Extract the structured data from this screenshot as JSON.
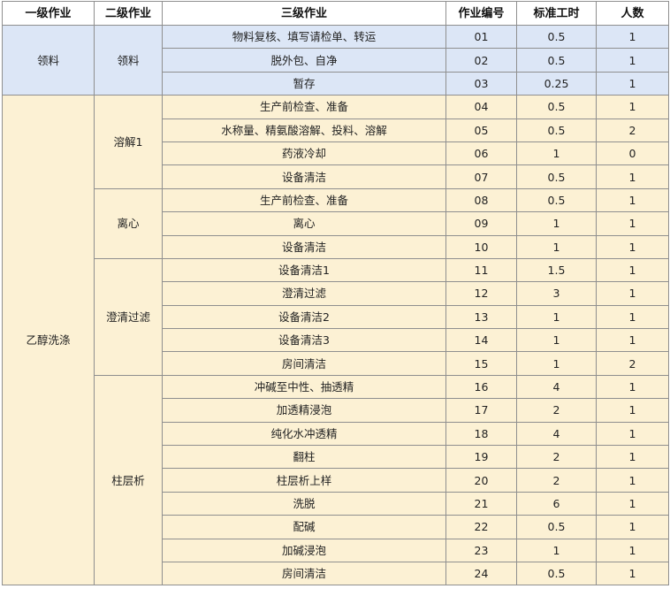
{
  "header": {
    "level1": "一级作业",
    "level2": "二级作业",
    "level3": "三级作业",
    "code": "作业编号",
    "std_hours": "标准工时",
    "people": "人数"
  },
  "groups": [
    {
      "level1": "领料",
      "subgroups": [
        {
          "level2": "领料",
          "rows": [
            {
              "task": "物料复核、填写请检单、转运",
              "code": "01",
              "hours": "0.5",
              "people": "1"
            },
            {
              "task": "脱外包、自净",
              "code": "02",
              "hours": "0.5",
              "people": "1"
            },
            {
              "task": "暂存",
              "code": "03",
              "hours": "0.25",
              "people": "1"
            }
          ]
        }
      ]
    },
    {
      "level1": "乙醇洗涤",
      "subgroups": [
        {
          "level2": "溶解1",
          "rows": [
            {
              "task": "生产前检查、准备",
              "code": "04",
              "hours": "0.5",
              "people": "1"
            },
            {
              "task": "水称量、精氨酸溶解、投料、溶解",
              "code": "05",
              "hours": "0.5",
              "people": "2"
            },
            {
              "task": "药液冷却",
              "code": "06",
              "hours": "1",
              "people": "0"
            },
            {
              "task": "设备清洁",
              "code": "07",
              "hours": "0.5",
              "people": "1"
            }
          ]
        },
        {
          "level2": "离心",
          "rows": [
            {
              "task": "生产前检查、准备",
              "code": "08",
              "hours": "0.5",
              "people": "1"
            },
            {
              "task": "离心",
              "code": "09",
              "hours": "1",
              "people": "1"
            },
            {
              "task": "设备清洁",
              "code": "10",
              "hours": "1",
              "people": "1"
            }
          ]
        },
        {
          "level2": "澄清过滤",
          "rows": [
            {
              "task": "设备清洁1",
              "code": "11",
              "hours": "1.5",
              "people": "1"
            },
            {
              "task": "澄清过滤",
              "code": "12",
              "hours": "3",
              "people": "1"
            },
            {
              "task": "设备清洁2",
              "code": "13",
              "hours": "1",
              "people": "1"
            },
            {
              "task": "设备清洁3",
              "code": "14",
              "hours": "1",
              "people": "1"
            },
            {
              "task": "房间清洁",
              "code": "15",
              "hours": "1",
              "people": "2"
            }
          ]
        },
        {
          "level2": "柱层析",
          "rows": [
            {
              "task": "冲碱至中性、抽透精",
              "code": "16",
              "hours": "4",
              "people": "1"
            },
            {
              "task": "加透精浸泡",
              "code": "17",
              "hours": "2",
              "people": "1"
            },
            {
              "task": "纯化水冲透精",
              "code": "18",
              "hours": "4",
              "people": "1"
            },
            {
              "task": "翻柱",
              "code": "19",
              "hours": "2",
              "people": "1"
            },
            {
              "task": "柱层析上样",
              "code": "20",
              "hours": "2",
              "people": "1"
            },
            {
              "task": "洗脱",
              "code": "21",
              "hours": "6",
              "people": "1"
            },
            {
              "task": "配碱",
              "code": "22",
              "hours": "0.5",
              "people": "1"
            },
            {
              "task": "加碱浸泡",
              "code": "23",
              "hours": "1",
              "people": "1"
            },
            {
              "task": "房间清洁",
              "code": "24",
              "hours": "0.5",
              "people": "1"
            }
          ]
        }
      ]
    }
  ]
}
